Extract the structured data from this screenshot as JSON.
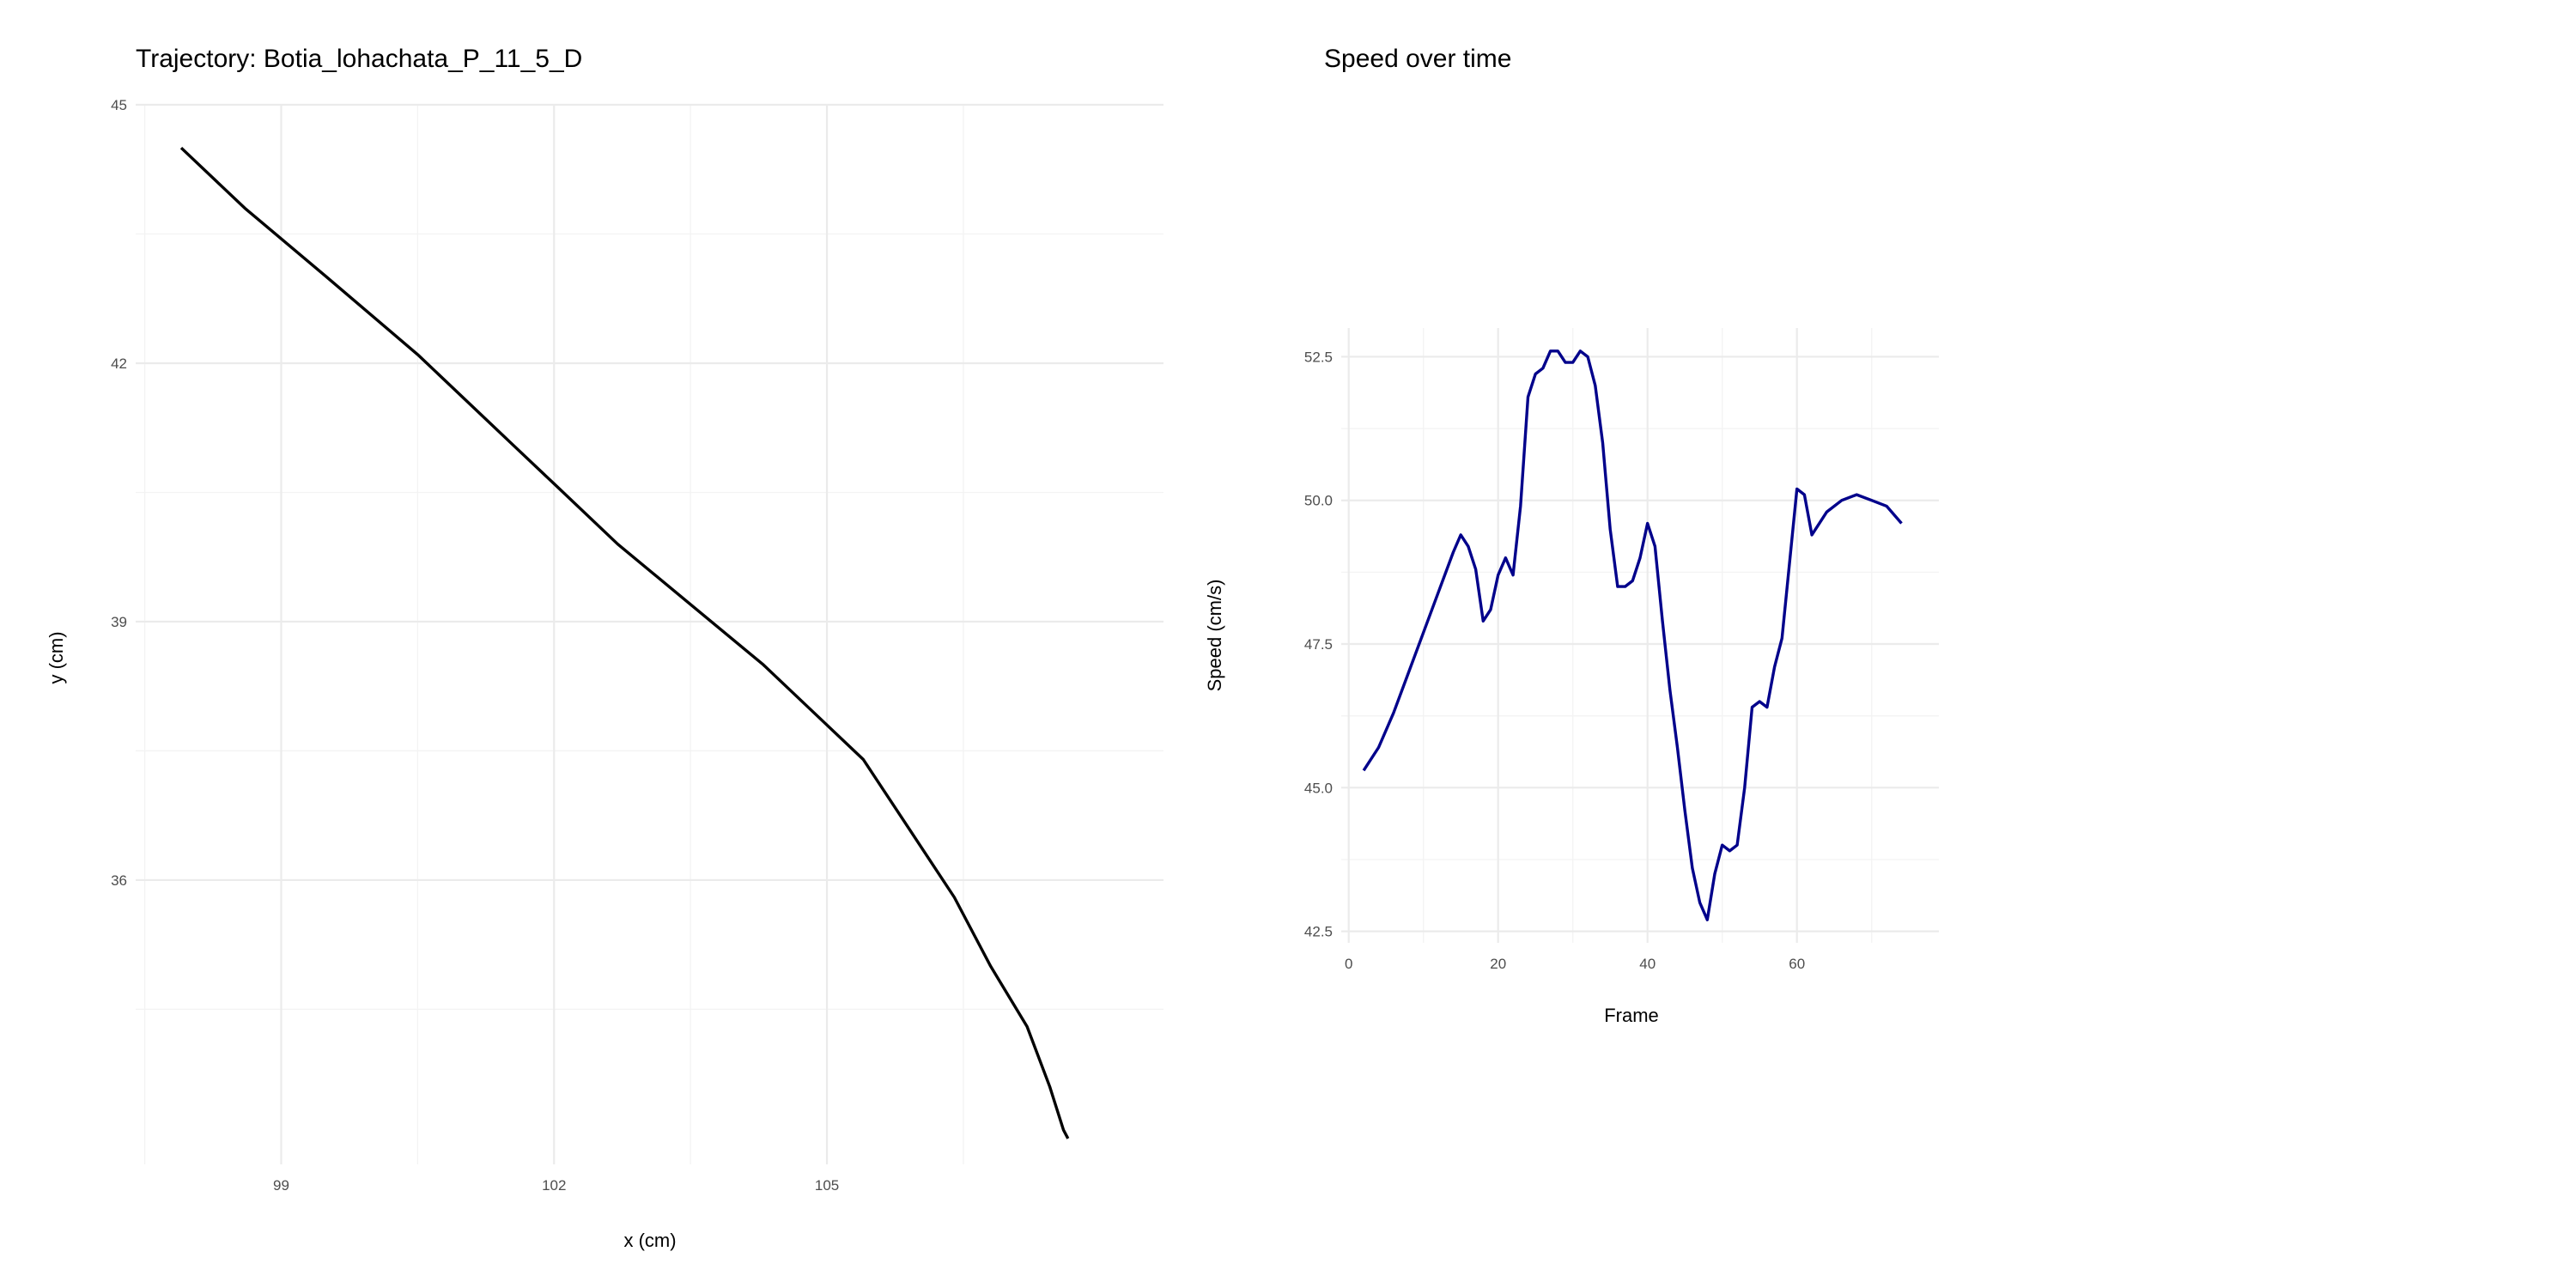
{
  "chart_data": [
    {
      "type": "line",
      "title": "Trajectory: Botia_lohachata_P_11_5_D",
      "xlabel": "x (cm)",
      "ylabel": "y (cm)",
      "xlim": [
        97.4,
        108.7
      ],
      "ylim": [
        32.7,
        45.0
      ],
      "x_ticks": [
        99,
        102,
        105
      ],
      "y_ticks": [
        36,
        39,
        42,
        45
      ],
      "x_tick_labels": [
        "99",
        "102",
        "105"
      ],
      "y_tick_labels": [
        "36",
        "39",
        "42",
        "45"
      ],
      "grid": true,
      "line_color": "#000000",
      "series": [
        {
          "x": [
            97.9,
            98.6,
            99.5,
            100.5,
            101.5,
            102.0,
            102.7,
            103.5,
            104.3,
            104.8,
            105.4,
            105.9,
            106.4,
            106.8,
            107.2,
            107.45,
            107.6,
            107.65
          ],
          "y": [
            44.5,
            43.8,
            43.0,
            42.1,
            41.1,
            40.6,
            39.9,
            39.2,
            38.5,
            38.0,
            37.4,
            36.6,
            35.8,
            35.0,
            34.3,
            33.6,
            33.1,
            33.0
          ]
        }
      ]
    },
    {
      "type": "line",
      "title": "Speed over time",
      "xlabel": "Frame",
      "ylabel": "Speed (cm/s)",
      "xlim": [
        -1,
        79
      ],
      "ylim": [
        42.3,
        53.0
      ],
      "x_ticks": [
        0,
        20,
        40,
        60
      ],
      "y_ticks": [
        42.5,
        45.0,
        47.5,
        50.0,
        52.5
      ],
      "x_tick_labels": [
        "0",
        "20",
        "40",
        "60"
      ],
      "y_tick_labels": [
        "42.5",
        "45.0",
        "47.5",
        "50.0",
        "52.5"
      ],
      "grid": true,
      "line_color": "#00008B",
      "series": [
        {
          "x": [
            2,
            4,
            6,
            8,
            10,
            12,
            14,
            15,
            16,
            17,
            18,
            19,
            20,
            21,
            22,
            23,
            24,
            25,
            26,
            27,
            28,
            29,
            30,
            31,
            32,
            33,
            34,
            35,
            36,
            37,
            38,
            39,
            40,
            41,
            42,
            43,
            44,
            45,
            46,
            47,
            48,
            49,
            50,
            51,
            52,
            53,
            54,
            55,
            56,
            57,
            58,
            59,
            60,
            61,
            62,
            64,
            66,
            68,
            70,
            72,
            74
          ],
          "y": [
            45.3,
            45.7,
            46.3,
            47.0,
            47.7,
            48.4,
            49.1,
            49.4,
            49.2,
            48.8,
            47.9,
            48.1,
            48.7,
            49.0,
            48.7,
            49.9,
            51.8,
            52.2,
            52.3,
            52.6,
            52.6,
            52.4,
            52.4,
            52.6,
            52.5,
            52.0,
            51.0,
            49.5,
            48.5,
            48.5,
            48.6,
            49.0,
            49.6,
            49.2,
            47.9,
            46.7,
            45.7,
            44.6,
            43.6,
            43.0,
            42.7,
            43.5,
            44.0,
            43.9,
            44.0,
            45.0,
            46.4,
            46.5,
            46.4,
            47.1,
            47.6,
            48.9,
            50.2,
            50.1,
            49.4,
            49.8,
            50.0,
            50.1,
            50.0,
            49.9,
            49.6
          ]
        }
      ]
    }
  ]
}
